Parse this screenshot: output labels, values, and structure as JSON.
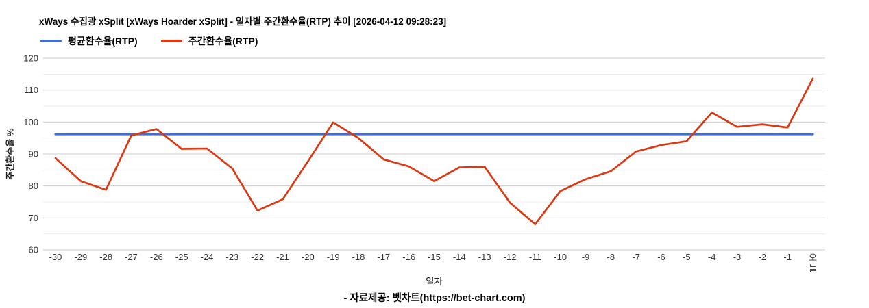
{
  "title": "xWays 수집광 xSplit [xWays Hoarder xSplit] - 일자별 주간환수율(RTP) 추이 [2026-04-12 09:28:23]",
  "footer": "- 자료제공: 벳차트(https://bet-chart.com)",
  "colors": {
    "average_line": "#3f6fd1",
    "weekly_line": "#dc3912",
    "grid_major": "#cccccc",
    "grid_minor": "#ebebeb",
    "tick_text": "#333333",
    "background": "#ffffff"
  },
  "chart_data": {
    "type": "line",
    "title": "xWays 수집광 xSplit [xWays Hoarder xSplit] - 일자별 주간환수율(RTP) 추이 [2026-04-12 09:28:23]",
    "xlabel": "일자",
    "ylabel": "주간환수율 %",
    "ylim": [
      60,
      120
    ],
    "y_major_step": 10,
    "y_minor_step": 5,
    "y_tick_labels": [
      "60",
      "70",
      "80",
      "90",
      "100",
      "110",
      "120"
    ],
    "grid": true,
    "legend_position": "top",
    "categories": [
      "-30",
      "-29",
      "-28",
      "-27",
      "-26",
      "-25",
      "-24",
      "-23",
      "-22",
      "-21",
      "-20",
      "-19",
      "-18",
      "-17",
      "-16",
      "-15",
      "-14",
      "-13",
      "-12",
      "-11",
      "-10",
      "-9",
      "-8",
      "-7",
      "-6",
      "-5",
      "-4",
      "-3",
      "-2",
      "-1",
      "오늘"
    ],
    "series": [
      {
        "name": "평균환수율(RTP)",
        "color": "#3f6fd1",
        "constant": 96.2
      },
      {
        "name": "주간환수율(RTP)",
        "color": "#dc3912",
        "values": [
          88.7,
          81.5,
          78.8,
          95.8,
          97.8,
          91.6,
          91.7,
          85.5,
          72.3,
          75.8,
          87.7,
          99.9,
          95.0,
          88.3,
          86.1,
          81.5,
          85.8,
          86.0,
          74.8,
          68.0,
          78.4,
          82.1,
          84.6,
          90.8,
          92.8,
          94.0,
          103.0,
          98.5,
          99.3,
          98.3,
          113.6
        ]
      }
    ]
  }
}
